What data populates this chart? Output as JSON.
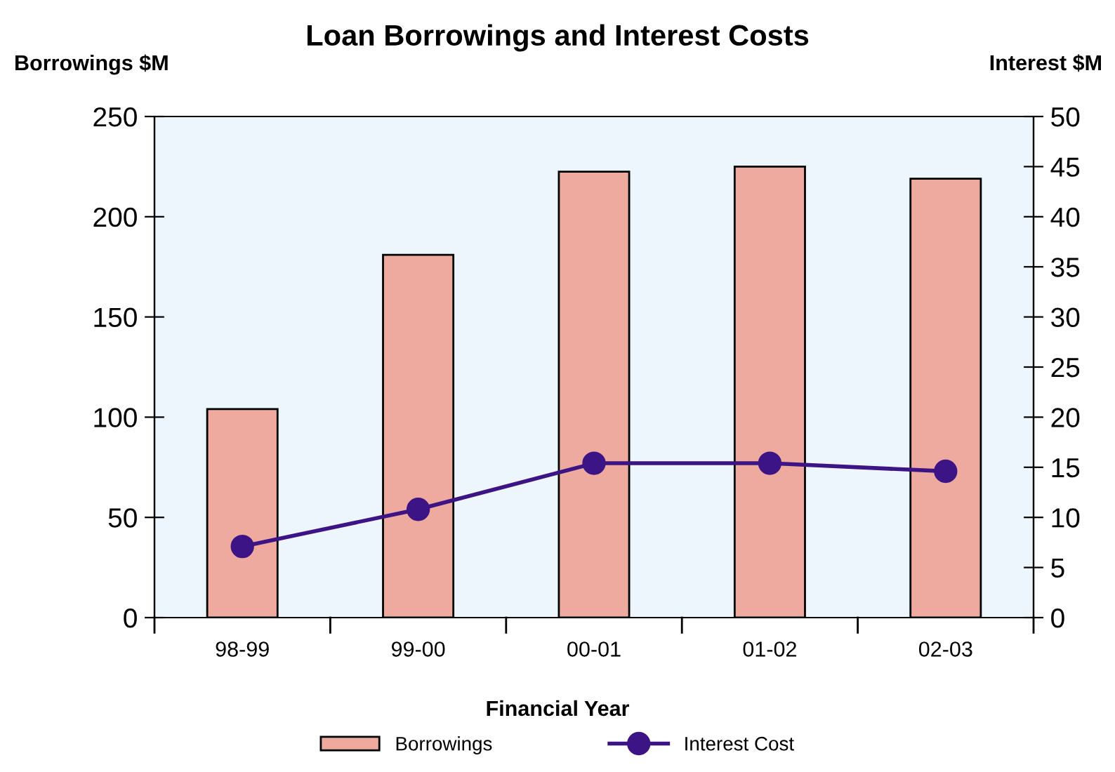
{
  "chart_data": {
    "type": "bar",
    "title": "Loan Borrowings and Interest Costs",
    "xlabel": "Financial Year",
    "ylabel": "Borrowings $M",
    "y2label": "Interest $M",
    "categories": [
      "98-99",
      "99-00",
      "00-01",
      "01-02",
      "02-03"
    ],
    "series": [
      {
        "name": "Borrowings",
        "color": "#eeaa9f",
        "values": [
          104,
          181,
          222.5,
          225,
          219
        ]
      },
      {
        "name": "Interest Cost",
        "type": "line",
        "axis": "y2",
        "color": "#3d1485",
        "marker": "circle",
        "line_style": "solid",
        "values": [
          7.1,
          10.8,
          15.4,
          15.4,
          14.6
        ]
      }
    ],
    "ylim": [
      0,
      250
    ],
    "yticks": [
      0,
      50,
      100,
      150,
      200,
      250
    ],
    "y2lim": [
      0,
      50
    ],
    "y2ticks": [
      0,
      5,
      10,
      15,
      20,
      25,
      30,
      35,
      40,
      45,
      50
    ],
    "grid": false,
    "legend": "bottom"
  }
}
